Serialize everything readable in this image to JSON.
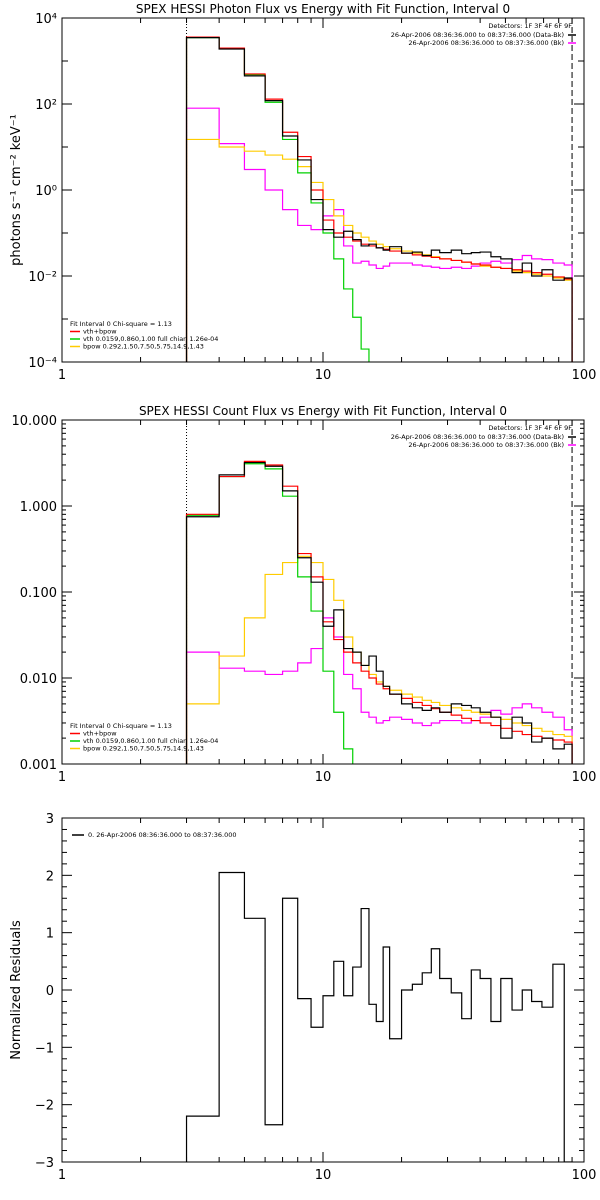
{
  "colors": {
    "data": "#000000",
    "total": "#ff0000",
    "vth": "#00d000",
    "bpow": "#ffcc00",
    "bkg": "#ff00ff"
  },
  "chart_data": [
    {
      "type": "line",
      "title": "SPEX HESSI Photon Flux vs Energy with Fit Function, Interval 0",
      "ylabel": "photons s⁻¹ cm⁻² keV⁻¹",
      "xscale": "log",
      "yscale": "log",
      "xlim": [
        1,
        100
      ],
      "ylim": [
        0.0001,
        10000
      ],
      "x_ticks": [
        "1",
        "10",
        "100"
      ],
      "y_ticks": [
        "10⁻⁴",
        "10⁻²",
        "10⁰",
        "10²",
        "10⁴"
      ],
      "vlines": [
        3,
        90
      ],
      "header": [
        "Detectors: 1F 3F 4F 6F 9F",
        "26-Apr-2006 08:36:36.000 to 08:37:36.000 (Data-Bk)",
        "26-Apr-2006 08:36:36.000 to 08:37:36.000 (Bk)"
      ],
      "legend": [
        "Fit Interval 0   Chi-square = 1.13",
        "vth+bpow",
        "vth 0.0159,0.860,1.00  full chian 1.26e-04",
        "bpow 0.292,1.50,7.50,5.75,14.9,1.43"
      ],
      "edges": [
        3,
        4,
        5,
        6,
        7,
        8,
        9,
        10,
        11,
        12,
        13,
        14,
        15,
        16,
        17,
        18,
        20,
        22,
        24,
        26,
        28,
        31,
        34,
        37,
        40,
        44,
        48,
        53,
        58,
        63,
        69,
        76,
        84,
        90
      ],
      "series": [
        {
          "key": "data",
          "values": [
            3500,
            1900,
            450,
            120,
            18,
            5,
            0.6,
            0.12,
            0.08,
            0.11,
            0.07,
            0.05,
            0.055,
            0.045,
            0.04,
            0.048,
            0.034,
            0.036,
            0.03,
            0.04,
            0.035,
            0.04,
            0.033,
            0.035,
            0.036,
            0.028,
            0.025,
            0.012,
            0.02,
            0.01,
            0.014,
            0.008,
            0.009
          ]
        },
        {
          "key": "total",
          "values": [
            3600,
            2000,
            500,
            130,
            22,
            6,
            1.0,
            0.2,
            0.1,
            0.08,
            0.065,
            0.055,
            0.05,
            0.045,
            0.042,
            0.038,
            0.034,
            0.031,
            0.029,
            0.027,
            0.025,
            0.023,
            0.021,
            0.019,
            0.018,
            0.016,
            0.015,
            0.014,
            0.013,
            0.012,
            0.011,
            0.0095,
            0.0085
          ]
        },
        {
          "key": "vth",
          "values": [
            3500,
            1950,
            480,
            110,
            15,
            2.5,
            0.5,
            0.1,
            0.025,
            0.005,
            0.0011,
            0.0002,
            4e-05
          ]
        },
        {
          "key": "bpow",
          "values": [
            15,
            10,
            8,
            6.5,
            5.2,
            3.5,
            1.5,
            0.6,
            0.25,
            0.15,
            0.1,
            0.08,
            0.065,
            0.055,
            0.048,
            0.043,
            0.038,
            0.034,
            0.031,
            0.028,
            0.025,
            0.023,
            0.021,
            0.019,
            0.017,
            0.016,
            0.015,
            0.013,
            0.012,
            0.011,
            0.01,
            0.009,
            0.008
          ]
        },
        {
          "key": "bkg",
          "values": [
            80,
            12,
            3,
            1,
            0.35,
            0.15,
            0.12,
            0.25,
            0.35,
            0.05,
            0.02,
            0.022,
            0.018,
            0.015,
            0.017,
            0.02,
            0.02,
            0.018,
            0.017,
            0.016,
            0.015,
            0.016,
            0.015,
            0.017,
            0.02,
            0.022,
            0.02,
            0.024,
            0.03,
            0.025,
            0.024,
            0.02,
            0.018
          ]
        }
      ]
    },
    {
      "type": "line",
      "title": "SPEX HESSI Count Flux vs Energy with Fit Function, Interval 0",
      "ylabel": "",
      "xscale": "log",
      "yscale": "log",
      "xlim": [
        1,
        100
      ],
      "ylim": [
        0.001,
        10
      ],
      "x_ticks": [
        "1",
        "10",
        "100"
      ],
      "y_ticks": [
        "0.001",
        "0.010",
        "0.100",
        "1.000",
        "10.000"
      ],
      "vlines": [
        3,
        90
      ],
      "header": [
        "Detectors: 1F 3F 4F 6F 9F",
        "26-Apr-2006 08:36:36.000 to 08:37:36.000 (Data-Bk)",
        "26-Apr-2006 08:36:36.000 to 08:37:36.000 (Bk)"
      ],
      "legend": [
        "Fit Interval 0   Chi-square = 1.13",
        "vth+bpow",
        "vth 0.0159,0.860,1.00  full chian 1.26e-04",
        "bpow 0.292,1.50,7.50,5.75,14.9,1.43"
      ],
      "edges": [
        3,
        4,
        5,
        6,
        7,
        8,
        9,
        10,
        11,
        12,
        13,
        14,
        15,
        16,
        17,
        18,
        20,
        22,
        24,
        26,
        28,
        31,
        34,
        37,
        40,
        44,
        48,
        53,
        58,
        63,
        69,
        76,
        84,
        90
      ],
      "series": [
        {
          "key": "data",
          "values": [
            0.75,
            2.3,
            3.2,
            2.9,
            1.5,
            0.25,
            0.13,
            0.04,
            0.062,
            0.022,
            0.02,
            0.014,
            0.018,
            0.012,
            0.008,
            0.0065,
            0.005,
            0.0045,
            0.0042,
            0.0045,
            0.004,
            0.005,
            0.0048,
            0.0045,
            0.004,
            0.0035,
            0.002,
            0.0035,
            0.003,
            0.0018,
            0.002,
            0.0015,
            0.0017
          ]
        },
        {
          "key": "total",
          "values": [
            0.8,
            2.2,
            3.3,
            3.0,
            1.7,
            0.28,
            0.15,
            0.045,
            0.028,
            0.02,
            0.015,
            0.012,
            0.01,
            0.0085,
            0.0075,
            0.0065,
            0.0058,
            0.0052,
            0.0048,
            0.0044,
            0.004,
            0.0037,
            0.0034,
            0.0032,
            0.003,
            0.0028,
            0.0026,
            0.0024,
            0.0022,
            0.0021,
            0.002,
            0.0019,
            0.0018
          ]
        },
        {
          "key": "vth",
          "values": [
            0.78,
            2.2,
            3.1,
            2.7,
            1.3,
            0.15,
            0.06,
            0.012,
            0.004,
            0.0015,
            0.0005
          ]
        },
        {
          "key": "bpow",
          "values": [
            0.005,
            0.018,
            0.05,
            0.16,
            0.22,
            0.26,
            0.22,
            0.14,
            0.08,
            0.03,
            0.02,
            0.014,
            0.011,
            0.009,
            0.008,
            0.0072,
            0.0065,
            0.006,
            0.0055,
            0.0052,
            0.0048,
            0.0045,
            0.0042,
            0.004,
            0.0038,
            0.0035,
            0.0033,
            0.003,
            0.0028,
            0.0026,
            0.0024,
            0.0022,
            0.0021
          ]
        },
        {
          "key": "bkg",
          "values": [
            0.02,
            0.013,
            0.012,
            0.011,
            0.012,
            0.015,
            0.022,
            0.05,
            0.03,
            0.011,
            0.0075,
            0.004,
            0.0035,
            0.003,
            0.0032,
            0.0035,
            0.0033,
            0.003,
            0.0028,
            0.003,
            0.0032,
            0.0032,
            0.003,
            0.0032,
            0.0035,
            0.0042,
            0.0038,
            0.0045,
            0.005,
            0.0045,
            0.004,
            0.0035,
            0.0025
          ]
        }
      ]
    },
    {
      "type": "line",
      "title": "",
      "ylabel": "Normalized Residuals",
      "xscale": "log",
      "yscale": "linear",
      "xlim": [
        1,
        100
      ],
      "ylim": [
        -3,
        3
      ],
      "x_ticks": [
        "1",
        "10",
        "100"
      ],
      "y_ticks": [
        "−3",
        "−2",
        "−1",
        "0",
        "1",
        "2",
        "3"
      ],
      "legend": [
        "0. 26-Apr-2006 08:36:36.000 to 08:37:36.000"
      ],
      "edges": [
        3,
        4,
        5,
        6,
        7,
        8,
        9,
        10,
        11,
        12,
        13,
        14,
        15,
        16,
        17,
        18,
        20,
        22,
        24,
        26,
        28,
        31,
        34,
        37,
        40,
        44,
        48,
        53,
        58,
        63,
        69,
        76,
        84,
        90
      ],
      "series": [
        {
          "key": "data",
          "values": [
            -2.2,
            2.05,
            1.25,
            -2.35,
            1.6,
            -0.15,
            -0.65,
            -0.1,
            0.5,
            -0.1,
            0.4,
            1.42,
            -0.25,
            -0.55,
            0.75,
            -0.85,
            0.0,
            0.1,
            0.3,
            0.72,
            0.2,
            -0.05,
            -0.5,
            0.35,
            0.2,
            -0.55,
            0.2,
            -0.35,
            0.0,
            -0.2,
            -0.3,
            0.45,
            -3.0
          ]
        }
      ]
    }
  ]
}
